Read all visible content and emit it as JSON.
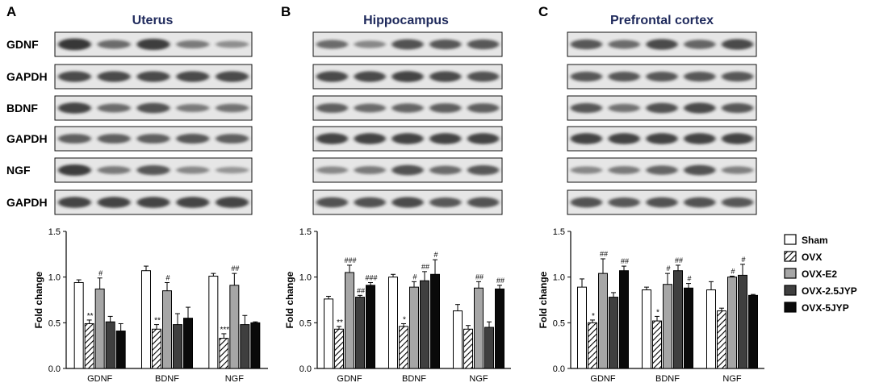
{
  "colors": {
    "Sham": "#ffffff",
    "OVX": "hatch",
    "OVX-E2": "#a6a6a6",
    "OVX-2.5JYP": "#3f3f3f",
    "OVX-5JYP": "#0a0a0a",
    "title": "#1f2a5c",
    "blot_bg": "#e6e6e6",
    "band": "#262626"
  },
  "legend": {
    "entries": [
      "Sham",
      "OVX",
      "OVX-E2",
      "OVX-2.5JYP",
      "OVX-5JYP"
    ]
  },
  "chart_data": [
    {
      "panel_letter": "A",
      "title": "Uterus",
      "type": "bar",
      "ylabel": "Fold change",
      "ylim": [
        0,
        1.5
      ],
      "yticks": [
        "0.0",
        "0.5",
        "1.0",
        "1.5"
      ],
      "categories": [
        "GDNF",
        "BDNF",
        "NGF"
      ],
      "series": [
        {
          "name": "Sham",
          "values": [
            0.94,
            1.07,
            1.01
          ],
          "err": [
            0.03,
            0.05,
            0.03
          ],
          "marks": [
            "",
            "",
            ""
          ]
        },
        {
          "name": "OVX",
          "values": [
            0.49,
            0.43,
            0.33
          ],
          "err": [
            0.04,
            0.05,
            0.05
          ],
          "marks": [
            "**",
            "**",
            "***"
          ]
        },
        {
          "name": "OVX-E2",
          "values": [
            0.87,
            0.85,
            0.91
          ],
          "err": [
            0.12,
            0.09,
            0.13
          ],
          "marks": [
            "#",
            "#",
            "##"
          ]
        },
        {
          "name": "OVX-2.5JYP",
          "values": [
            0.51,
            0.48,
            0.48
          ],
          "err": [
            0.06,
            0.12,
            0.1
          ],
          "marks": [
            "",
            "",
            ""
          ]
        },
        {
          "name": "OVX-5JYP",
          "values": [
            0.41,
            0.55,
            0.5
          ],
          "err": [
            0.08,
            0.12,
            0.01
          ],
          "marks": [
            "",
            "",
            ""
          ]
        }
      ],
      "blots": [
        {
          "label": "GDNF",
          "intensity": [
            0.95,
            0.55,
            0.9,
            0.45,
            0.3
          ]
        },
        {
          "label": "GAPDH",
          "intensity": [
            0.8,
            0.8,
            0.8,
            0.8,
            0.8
          ]
        },
        {
          "label": "BDNF",
          "intensity": [
            0.85,
            0.55,
            0.75,
            0.45,
            0.5
          ]
        },
        {
          "label": "GAPDH",
          "intensity": [
            0.65,
            0.65,
            0.65,
            0.7,
            0.65
          ]
        },
        {
          "label": "NGF",
          "intensity": [
            0.9,
            0.45,
            0.7,
            0.35,
            0.25
          ]
        },
        {
          "label": "GAPDH",
          "intensity": [
            0.85,
            0.85,
            0.85,
            0.85,
            0.85
          ]
        }
      ]
    },
    {
      "panel_letter": "B",
      "title": "Hippocampus",
      "type": "bar",
      "ylabel": "Fold change",
      "ylim": [
        0,
        1.5
      ],
      "yticks": [
        "0.0",
        "0.5",
        "1.0",
        "1.5"
      ],
      "categories": [
        "GDNF",
        "BDNF",
        "NGF"
      ],
      "series": [
        {
          "name": "Sham",
          "values": [
            0.76,
            1.0,
            0.63
          ],
          "err": [
            0.03,
            0.03,
            0.07
          ],
          "marks": [
            "",
            "",
            ""
          ]
        },
        {
          "name": "OVX",
          "values": [
            0.43,
            0.46,
            0.43
          ],
          "err": [
            0.03,
            0.03,
            0.04
          ],
          "marks": [
            "**",
            "*",
            ""
          ]
        },
        {
          "name": "OVX-E2",
          "values": [
            1.05,
            0.89,
            0.88
          ],
          "err": [
            0.08,
            0.06,
            0.07
          ],
          "marks": [
            "###",
            "#",
            "##"
          ]
        },
        {
          "name": "OVX-2.5JYP",
          "values": [
            0.78,
            0.96,
            0.45
          ],
          "err": [
            0.02,
            0.1,
            0.06
          ],
          "marks": [
            "##",
            "##",
            ""
          ]
        },
        {
          "name": "OVX-5JYP",
          "values": [
            0.91,
            1.03,
            0.87
          ],
          "err": [
            0.03,
            0.16,
            0.04
          ],
          "marks": [
            "###",
            "#",
            "##"
          ]
        }
      ],
      "blots": [
        {
          "label": "",
          "intensity": [
            0.55,
            0.35,
            0.75,
            0.7,
            0.7
          ]
        },
        {
          "label": "",
          "intensity": [
            0.8,
            0.8,
            0.85,
            0.8,
            0.75
          ]
        },
        {
          "label": "",
          "intensity": [
            0.65,
            0.55,
            0.6,
            0.65,
            0.65
          ]
        },
        {
          "label": "",
          "intensity": [
            0.85,
            0.85,
            0.85,
            0.85,
            0.85
          ]
        },
        {
          "label": "",
          "intensity": [
            0.35,
            0.45,
            0.75,
            0.55,
            0.7
          ]
        },
        {
          "label": "",
          "intensity": [
            0.75,
            0.75,
            0.8,
            0.7,
            0.75
          ]
        }
      ]
    },
    {
      "panel_letter": "C",
      "title": "Prefrontal cortex",
      "type": "bar",
      "ylabel": "Fold change",
      "ylim": [
        0,
        1.5
      ],
      "yticks": [
        "0.0",
        "0.5",
        "1.0",
        "1.5"
      ],
      "categories": [
        "GDNF",
        "BDNF",
        "NGF"
      ],
      "series": [
        {
          "name": "Sham",
          "values": [
            0.89,
            0.86,
            0.86
          ],
          "err": [
            0.09,
            0.03,
            0.09
          ],
          "marks": [
            "",
            "",
            ""
          ]
        },
        {
          "name": "OVX",
          "values": [
            0.5,
            0.52,
            0.63
          ],
          "err": [
            0.03,
            0.05,
            0.03
          ],
          "marks": [
            "*",
            "*",
            ""
          ]
        },
        {
          "name": "OVX-E2",
          "values": [
            1.04,
            0.92,
            1.0
          ],
          "err": [
            0.16,
            0.12,
            0.01
          ],
          "marks": [
            "##",
            "#",
            "#"
          ]
        },
        {
          "name": "OVX-2.5JYP",
          "values": [
            0.78,
            1.07,
            1.02
          ],
          "err": [
            0.05,
            0.06,
            0.12
          ],
          "marks": [
            "",
            "##",
            "#"
          ]
        },
        {
          "name": "OVX-5JYP",
          "values": [
            1.07,
            0.88,
            0.8
          ],
          "err": [
            0.05,
            0.05,
            0.01
          ],
          "marks": [
            "##",
            "#",
            ""
          ]
        }
      ],
      "blots": [
        {
          "label": "",
          "intensity": [
            0.7,
            0.55,
            0.8,
            0.6,
            0.8
          ]
        },
        {
          "label": "",
          "intensity": [
            0.7,
            0.7,
            0.7,
            0.7,
            0.7
          ]
        },
        {
          "label": "",
          "intensity": [
            0.7,
            0.5,
            0.75,
            0.8,
            0.7
          ]
        },
        {
          "label": "",
          "intensity": [
            0.85,
            0.85,
            0.85,
            0.85,
            0.85
          ]
        },
        {
          "label": "",
          "intensity": [
            0.35,
            0.45,
            0.6,
            0.75,
            0.4
          ]
        },
        {
          "label": "",
          "intensity": [
            0.75,
            0.7,
            0.75,
            0.75,
            0.7
          ]
        }
      ]
    }
  ]
}
